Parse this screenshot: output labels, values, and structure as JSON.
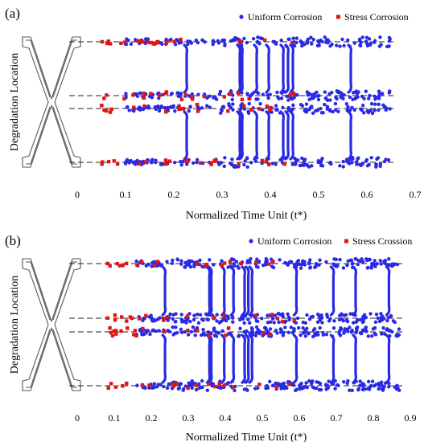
{
  "chart_data": [
    {
      "type": "scatter",
      "panel_label": "(a)",
      "xlabel": "Normalized Time Unit (t*)",
      "ylabel": "Degradation Location",
      "xlim": [
        0,
        0.7
      ],
      "xticks": [
        "0",
        "0.1",
        "0.2",
        "0.3",
        "0.4",
        "0.5",
        "0.6",
        "0.7"
      ],
      "grid": false,
      "legend_position": "top-right",
      "levels": [
        "top",
        "upper-middle",
        "lower-middle",
        "bottom"
      ],
      "series": [
        {
          "name": "Uniform Corrosion",
          "color": "#2a2ae6",
          "x_range": [
            0.1,
            0.65
          ],
          "transitions": [
            0.225,
            0.335,
            0.34,
            0.37,
            0.395,
            0.425,
            0.435,
            0.445,
            0.565
          ]
        },
        {
          "name": "Stress Corrosion",
          "color": "#e01515",
          "x_range": [
            0.05,
            0.46
          ]
        }
      ]
    },
    {
      "type": "scatter",
      "panel_label": "(b)",
      "xlabel": "Normalized Time Unit (t*)",
      "ylabel": "Degradation Location",
      "xlim": [
        0,
        0.9
      ],
      "xticks": [
        "0",
        "0.1",
        "0.2",
        "0.3",
        "0.4",
        "0.5",
        "0.6",
        "0.7",
        "0.8",
        "0.9"
      ],
      "grid": false,
      "legend_position": "top-right",
      "levels": [
        "top",
        "upper-middle",
        "lower-middle",
        "bottom"
      ],
      "series": [
        {
          "name": "Uniform Corrosion",
          "color": "#2a2ae6",
          "x_range": [
            0.16,
            0.87
          ],
          "transitions": [
            0.235,
            0.355,
            0.36,
            0.395,
            0.42,
            0.45,
            0.46,
            0.47,
            0.59,
            0.69,
            0.75,
            0.84
          ]
        },
        {
          "name": "Stress Crossion",
          "color": "#e01515",
          "x_range": [
            0.08,
            0.6
          ]
        }
      ]
    }
  ]
}
